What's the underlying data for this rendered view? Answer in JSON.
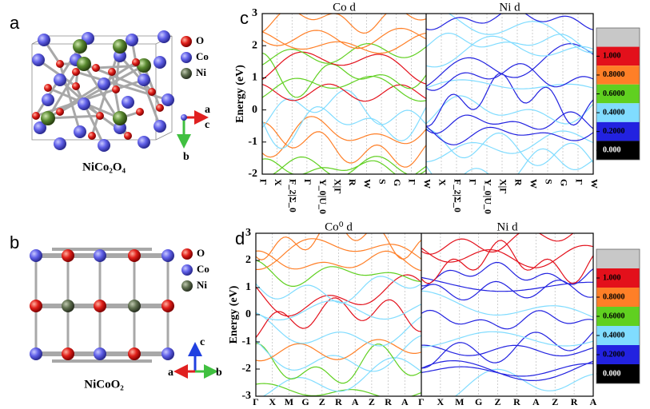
{
  "panel_labels": [
    "a",
    "b",
    "c",
    "d"
  ],
  "structures": [
    {
      "formula": "NiCo₂O₄",
      "legend": [
        "O",
        "Co",
        "Ni"
      ],
      "axes": [
        "a",
        "c",
        "b"
      ]
    },
    {
      "formula": "NiCoO₂",
      "legend": [
        "O",
        "Co",
        "Ni"
      ],
      "axes": [
        "c",
        "a",
        "b"
      ]
    }
  ],
  "bands": [
    {
      "titles": [
        "Co d",
        "Ni d"
      ],
      "y_label": "Energy (eV)",
      "ylim": [
        -2,
        3
      ],
      "yticks": [
        3,
        2,
        1,
        0,
        -1,
        -2
      ],
      "kpoints": [
        [
          "Γ",
          "X",
          "F_2|Σ_0",
          "Γ",
          "Y_0|U_0",
          "X|Γ",
          "R",
          "W",
          "S",
          "G",
          "Γ"
        ],
        [
          "W",
          "X",
          "F_2|Σ_0",
          "Γ",
          "Y_0|U_0",
          "X|Γ",
          "R",
          "W",
          "S",
          "G",
          "Γ",
          "W"
        ]
      ],
      "colorbar": {
        "colors": [
          "#c8c8c8",
          "#e3101b",
          "#ff7f27",
          "#60d020",
          "#80dcff",
          "#2222e0",
          "#000000"
        ],
        "ticks": [
          {
            "value": 1,
            "label": "1.000"
          },
          {
            "value": 0.8,
            "label": "0.8000"
          },
          {
            "value": 0.6,
            "label": "0.6000"
          },
          {
            "value": 0.4,
            "label": "0.4000"
          },
          {
            "value": 0.2,
            "label": "0.2000"
          },
          {
            "value": 0,
            "label": "0.000"
          }
        ]
      }
    },
    {
      "titles": [
        "Co⁰ d",
        "Ni d"
      ],
      "y_label": "Energy (eV)",
      "ylim": [
        -3,
        3
      ],
      "yticks": [
        3,
        2,
        1,
        0,
        -1,
        -2,
        -3
      ],
      "kpoints": [
        [
          "Γ",
          "X",
          "M",
          "G",
          "Z",
          "R",
          "A",
          "Z",
          "R",
          "A"
        ],
        [
          "Γ",
          "X",
          "M",
          "G",
          "Z",
          "R",
          "A",
          "Z",
          "R",
          "A"
        ]
      ],
      "colorbar": {
        "colors": [
          "#c8c8c8",
          "#e3101b",
          "#ff7f27",
          "#60d020",
          "#80dcff",
          "#2222e0",
          "#000000"
        ],
        "ticks": [
          {
            "value": 1,
            "label": "1.000"
          },
          {
            "value": 0.8,
            "label": "0.8000"
          },
          {
            "value": 0.6,
            "label": "0.6000"
          },
          {
            "value": 0.4,
            "label": "0.4000"
          },
          {
            "value": 0.2,
            "label": "0.2000"
          },
          {
            "value": 0,
            "label": "0.000"
          }
        ]
      }
    }
  ]
}
